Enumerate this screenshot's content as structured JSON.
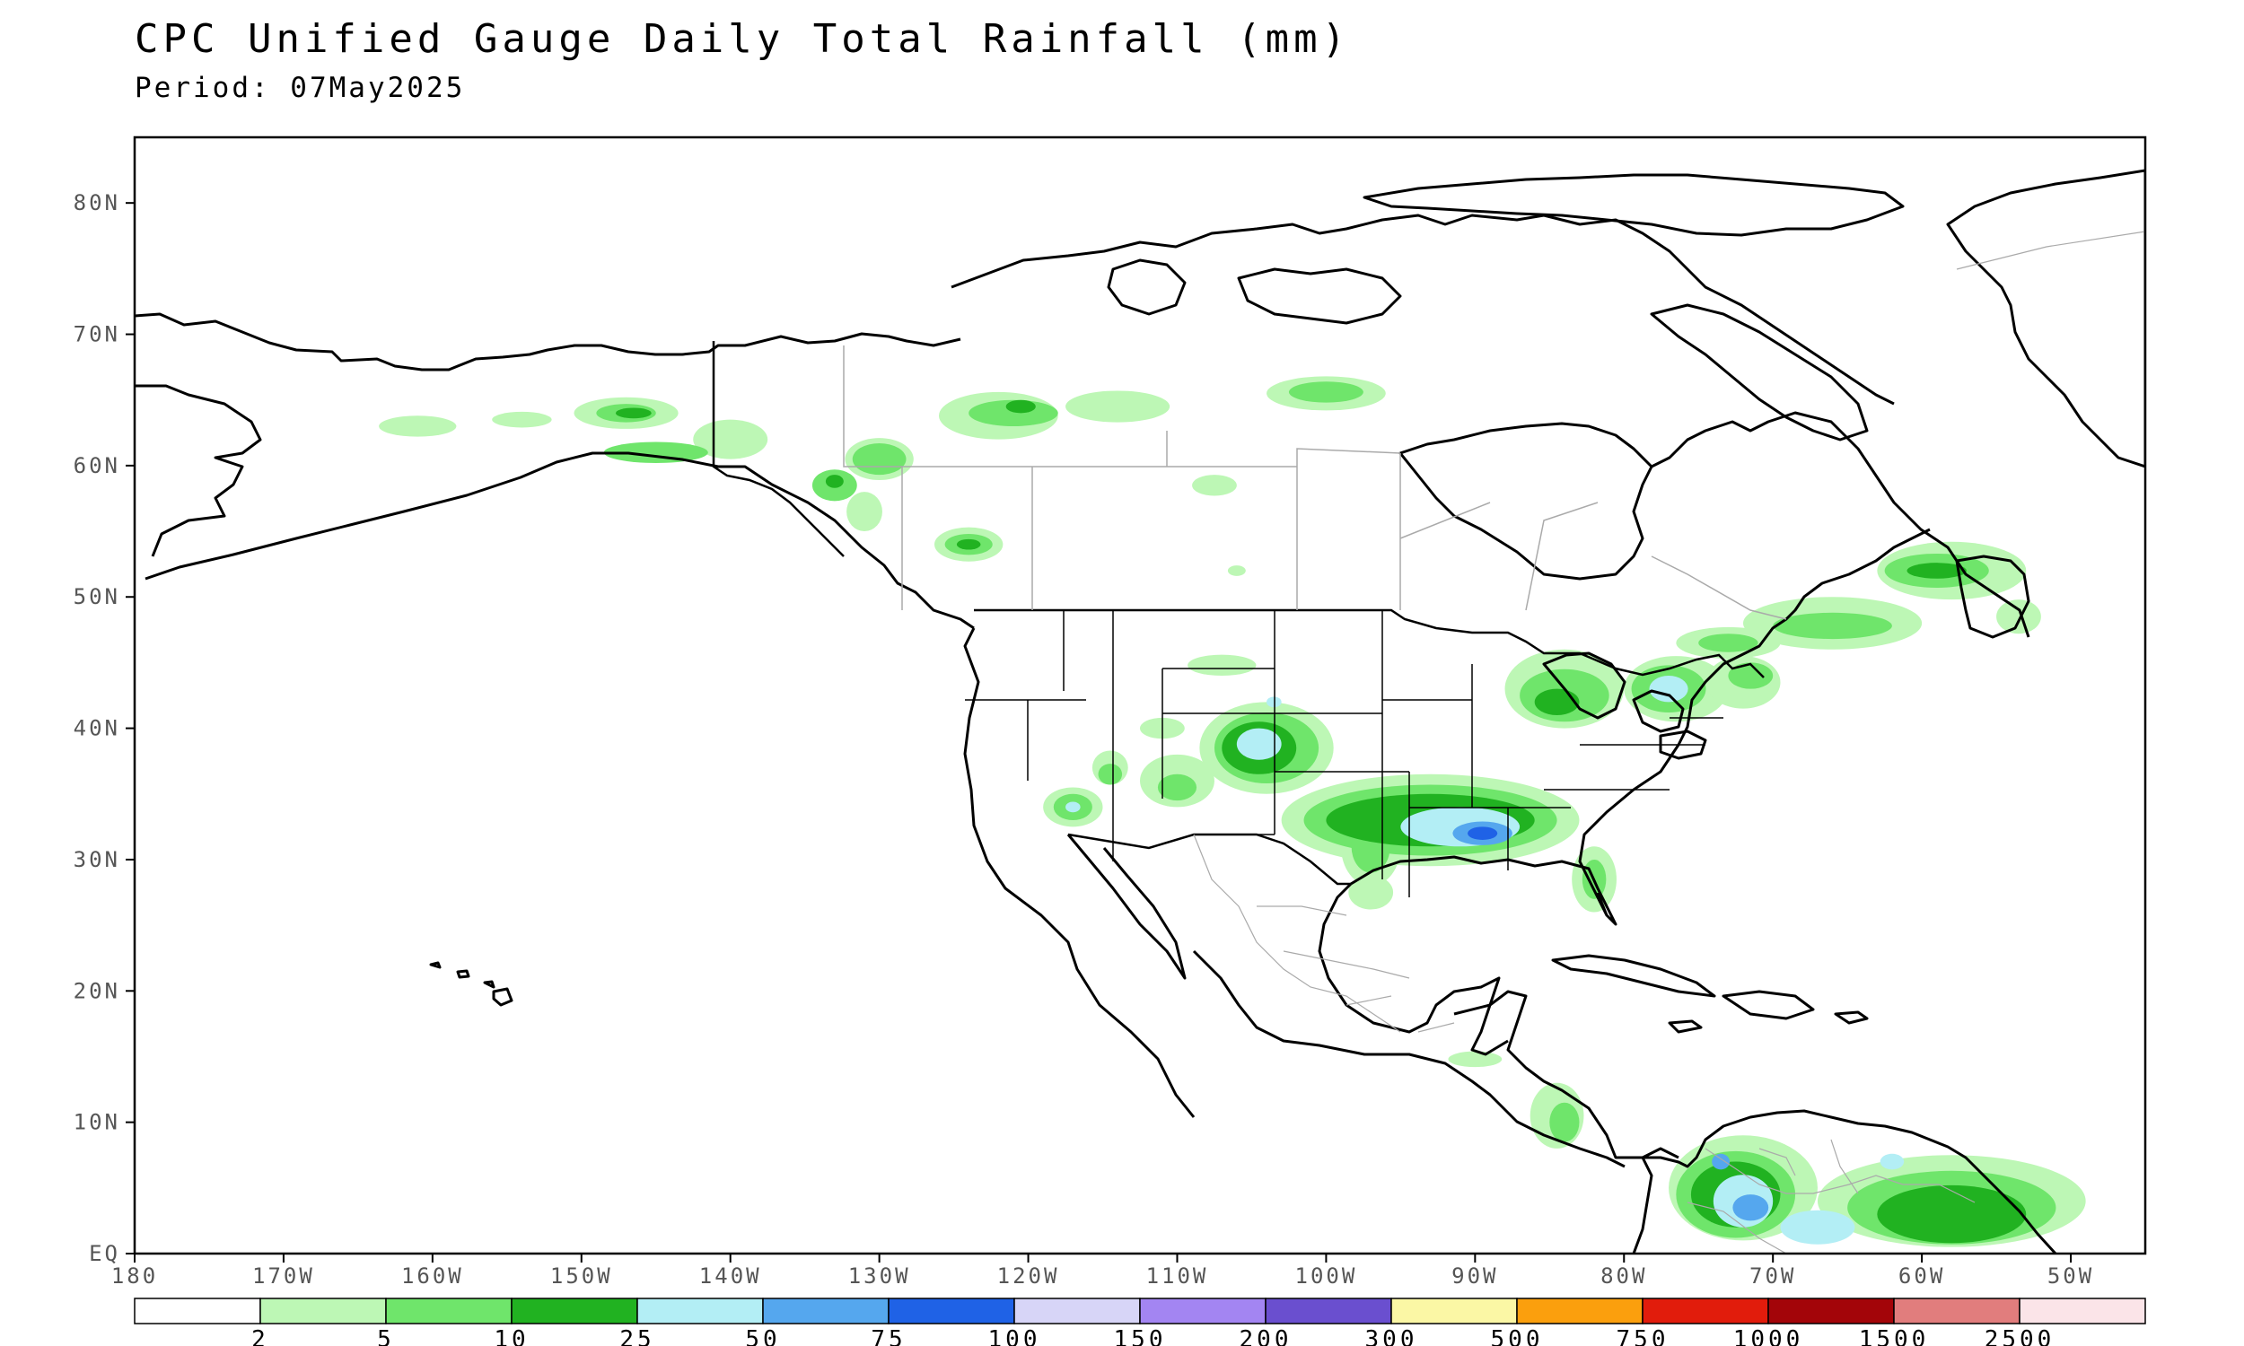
{
  "header": {
    "title": "CPC Unified Gauge Daily Total Rainfall (mm)",
    "period": "Period: 07May2025"
  },
  "map": {
    "lon_range": [
      -180,
      -45
    ],
    "lat_range": [
      0,
      85
    ],
    "lat_labels": [
      "EQ",
      "10N",
      "20N",
      "30N",
      "40N",
      "50N",
      "60N",
      "70N",
      "80N"
    ],
    "lon_labels": [
      "180",
      "170W",
      "160W",
      "150W",
      "140W",
      "130W",
      "120W",
      "110W",
      "100W",
      "90W",
      "80W",
      "70W",
      "60W",
      "50W"
    ]
  },
  "legend": {
    "colors": [
      "#ffffff",
      "#bdf7b5",
      "#6fe56b",
      "#21b221",
      "#b3eef5",
      "#55a7ee",
      "#1f62e6",
      "#d7d5f7",
      "#a385f2",
      "#6a4fcf",
      "#fbf7a5",
      "#fb9f0d",
      "#e11c0c",
      "#a30509",
      "#e17d7d",
      "#fbe4e8"
    ],
    "breaks": [
      "2",
      "5",
      "10",
      "25",
      "50",
      "75",
      "100",
      "150",
      "200",
      "300",
      "500",
      "750",
      "1000",
      "1500",
      "2500"
    ]
  },
  "rain_areas": [
    {
      "region": "Alaska",
      "level": 1,
      "lon": -161,
      "lat": 63,
      "rx": 2.6,
      "ry": 0.8
    },
    {
      "region": "Alaska",
      "level": 1,
      "lon": -154,
      "lat": 63.5,
      "rx": 2.0,
      "ry": 0.6
    },
    {
      "region": "Alaska",
      "level": 1,
      "lon": -147,
      "lat": 64,
      "rx": 3.5,
      "ry": 1.2
    },
    {
      "region": "Alaska",
      "level": 2,
      "lon": -147,
      "lat": 64,
      "rx": 2.0,
      "ry": 0.7
    },
    {
      "region": "Alaska",
      "level": 3,
      "lon": -146.5,
      "lat": 64,
      "rx": 1.2,
      "ry": 0.4
    },
    {
      "region": "Alaska",
      "level": 1,
      "lon": -140,
      "lat": 62,
      "rx": 2.5,
      "ry": 1.5
    },
    {
      "region": "Alaska",
      "level": 2,
      "lon": -145,
      "lat": 61,
      "rx": 3.5,
      "ry": 0.8
    },
    {
      "region": "Alaska",
      "level": 2,
      "lon": -133,
      "lat": 58.5,
      "rx": 1.5,
      "ry": 1.2
    },
    {
      "region": "Alaska",
      "level": 3,
      "lon": -133,
      "lat": 58.8,
      "rx": 0.6,
      "ry": 0.5
    },
    {
      "region": "Alaska",
      "level": 1,
      "lon": -131,
      "lat": 56.5,
      "rx": 1.2,
      "ry": 1.5
    },
    {
      "region": "Yukon",
      "level": 1,
      "lon": -122,
      "lat": 63.8,
      "rx": 4.0,
      "ry": 1.8
    },
    {
      "region": "Yukon",
      "level": 2,
      "lon": -121,
      "lat": 64,
      "rx": 3.0,
      "ry": 1.0
    },
    {
      "region": "Yukon",
      "level": 3,
      "lon": -120.5,
      "lat": 64.5,
      "rx": 1.0,
      "ry": 0.5
    },
    {
      "region": "NWT",
      "level": 1,
      "lon": -114,
      "lat": 64.5,
      "rx": 3.5,
      "ry": 1.2
    },
    {
      "region": "Nunavut",
      "level": 1,
      "lon": -100,
      "lat": 65.5,
      "rx": 4.0,
      "ry": 1.3
    },
    {
      "region": "Nunavut",
      "level": 2,
      "lon": -100,
      "lat": 65.6,
      "rx": 2.5,
      "ry": 0.8
    },
    {
      "region": "BC",
      "level": 2,
      "lon": -130,
      "lat": 60.5,
      "rx": 1.8,
      "ry": 1.2
    },
    {
      "region": "BC",
      "level": 1,
      "lon": -130,
      "lat": 60.5,
      "rx": 2.3,
      "ry": 1.6
    },
    {
      "region": "AB",
      "level": 1,
      "lon": -124,
      "lat": 54,
      "rx": 2.3,
      "ry": 1.3
    },
    {
      "region": "AB",
      "level": 2,
      "lon": -124,
      "lat": 54,
      "rx": 1.6,
      "ry": 0.8
    },
    {
      "region": "AB",
      "level": 3,
      "lon": -124,
      "lat": 54,
      "rx": 0.8,
      "ry": 0.4
    },
    {
      "region": "SK",
      "level": 1,
      "lon": -107.5,
      "lat": 58.5,
      "rx": 1.5,
      "ry": 0.8
    },
    {
      "region": "SK",
      "level": 1,
      "lon": -106,
      "lat": 52,
      "rx": 0.6,
      "ry": 0.4
    },
    {
      "region": "Quebec",
      "level": 1,
      "lon": -58,
      "lat": 52,
      "rx": 5.0,
      "ry": 2.2
    },
    {
      "region": "Quebec",
      "level": 2,
      "lon": -59,
      "lat": 52,
      "rx": 3.5,
      "ry": 1.3
    },
    {
      "region": "Quebec",
      "level": 3,
      "lon": -59,
      "lat": 52,
      "rx": 2.0,
      "ry": 0.6
    },
    {
      "region": "Quebec",
      "level": 1,
      "lon": -66,
      "lat": 48,
      "rx": 6.0,
      "ry": 2.0
    },
    {
      "region": "Quebec",
      "level": 2,
      "lon": -66,
      "lat": 47.8,
      "rx": 4.0,
      "ry": 1.0
    },
    {
      "region": "Quebec",
      "level": 1,
      "lon": -73,
      "lat": 46.5,
      "rx": 3.5,
      "ry": 1.2
    },
    {
      "region": "Quebec",
      "level": 2,
      "lon": -73,
      "lat": 46.5,
      "rx": 2.0,
      "ry": 0.7
    },
    {
      "region": "Atlantic",
      "level": 1,
      "lon": -53.5,
      "lat": 48.5,
      "rx": 1.5,
      "ry": 1.3
    },
    {
      "region": "Great Lakes",
      "level": 1,
      "lon": -84,
      "lat": 43,
      "rx": 4.0,
      "ry": 3.0
    },
    {
      "region": "Great Lakes",
      "level": 2,
      "lon": -84,
      "lat": 42.5,
      "rx": 3.0,
      "ry": 2.0
    },
    {
      "region": "Great Lakes",
      "level": 3,
      "lon": -84.5,
      "lat": 42.0,
      "rx": 1.5,
      "ry": 1.0
    },
    {
      "region": "Northeast",
      "level": 1,
      "lon": -76.5,
      "lat": 43,
      "rx": 3.5,
      "ry": 2.5
    },
    {
      "region": "Northeast",
      "level": 2,
      "lon": -77,
      "lat": 43,
      "rx": 2.5,
      "ry": 1.8
    },
    {
      "region": "Northeast",
      "level": 4,
      "lon": -77,
      "lat": 43,
      "rx": 1.3,
      "ry": 1.0
    },
    {
      "region": "Northeast",
      "level": 1,
      "lon": -72,
      "lat": 43.5,
      "rx": 2.5,
      "ry": 2.0
    },
    {
      "region": "Northeast",
      "level": 2,
      "lon": -71.5,
      "lat": 44,
      "rx": 1.5,
      "ry": 1.0
    },
    {
      "region": "Rockies",
      "level": 1,
      "lon": -107,
      "lat": 44.8,
      "rx": 2.3,
      "ry": 0.8
    },
    {
      "region": "Rockies",
      "level": 1,
      "lon": -111,
      "lat": 40,
      "rx": 1.5,
      "ry": 0.8
    },
    {
      "region": "Plains",
      "level": 1,
      "lon": -104,
      "lat": 38.5,
      "rx": 4.5,
      "ry": 3.5
    },
    {
      "region": "Plains",
      "level": 2,
      "lon": -104,
      "lat": 38.5,
      "rx": 3.5,
      "ry": 2.7
    },
    {
      "region": "Plains",
      "level": 3,
      "lon": -104.5,
      "lat": 38.5,
      "rx": 2.5,
      "ry": 2.0
    },
    {
      "region": "Plains",
      "level": 4,
      "lon": -104.5,
      "lat": 38.8,
      "rx": 1.5,
      "ry": 1.2
    },
    {
      "region": "Plains",
      "level": 4,
      "lon": -103.5,
      "lat": 42,
      "rx": 0.5,
      "ry": 0.4
    },
    {
      "region": "Southwest",
      "level": 1,
      "lon": -114.5,
      "lat": 37,
      "rx": 1.2,
      "ry": 1.3
    },
    {
      "region": "Southwest",
      "level": 2,
      "lon": -114.5,
      "lat": 36.5,
      "rx": 0.8,
      "ry": 0.8
    },
    {
      "region": "Southwest",
      "level": 1,
      "lon": -117,
      "lat": 34,
      "rx": 2.0,
      "ry": 1.5
    },
    {
      "region": "Southwest",
      "level": 2,
      "lon": -117,
      "lat": 34,
      "rx": 1.3,
      "ry": 1.0
    },
    {
      "region": "Southwest",
      "level": 4,
      "lon": -117,
      "lat": 34,
      "rx": 0.5,
      "ry": 0.4
    },
    {
      "region": "Southwest",
      "level": 1,
      "lon": -110,
      "lat": 36,
      "rx": 2.5,
      "ry": 2.0
    },
    {
      "region": "Southwest",
      "level": 2,
      "lon": -110,
      "lat": 35.5,
      "rx": 1.3,
      "ry": 1.0
    },
    {
      "region": "South",
      "level": 1,
      "lon": -93,
      "lat": 33,
      "rx": 10.0,
      "ry": 3.5
    },
    {
      "region": "South",
      "level": 2,
      "lon": -93,
      "lat": 33,
      "rx": 8.5,
      "ry": 2.7
    },
    {
      "region": "South",
      "level": 3,
      "lon": -93,
      "lat": 33,
      "rx": 7.0,
      "ry": 2.0
    },
    {
      "region": "South",
      "level": 4,
      "lon": -91,
      "lat": 32.5,
      "rx": 4.0,
      "ry": 1.5
    },
    {
      "region": "South",
      "level": 5,
      "lon": -89.5,
      "lat": 32,
      "rx": 2.0,
      "ry": 0.9
    },
    {
      "region": "South",
      "level": 6,
      "lon": -89.5,
      "lat": 32,
      "rx": 1.0,
      "ry": 0.5
    },
    {
      "region": "South",
      "level": 1,
      "lon": -97,
      "lat": 31,
      "rx": 2.0,
      "ry": 3.0
    },
    {
      "region": "South",
      "level": 2,
      "lon": -97,
      "lat": 31,
      "rx": 1.3,
      "ry": 2.0
    },
    {
      "region": "Gulf Coast",
      "level": 1,
      "lon": -97,
      "lat": 27.5,
      "rx": 1.5,
      "ry": 1.3
    },
    {
      "region": "Florida",
      "level": 1,
      "lon": -82,
      "lat": 28.5,
      "rx": 1.5,
      "ry": 2.5
    },
    {
      "region": "Florida",
      "level": 2,
      "lon": -82,
      "lat": 28.5,
      "rx": 0.8,
      "ry": 1.5
    },
    {
      "region": "Central America",
      "level": 1,
      "lon": -90,
      "lat": 14.8,
      "rx": 1.8,
      "ry": 0.6
    },
    {
      "region": "Central America",
      "level": 1,
      "lon": -84.5,
      "lat": 10.5,
      "rx": 1.8,
      "ry": 2.5
    },
    {
      "region": "Central America",
      "level": 2,
      "lon": -84,
      "lat": 10,
      "rx": 1.0,
      "ry": 1.5
    },
    {
      "region": "South America",
      "level": 1,
      "lon": -72,
      "lat": 5,
      "rx": 5.0,
      "ry": 4.0
    },
    {
      "region": "South America",
      "level": 2,
      "lon": -72.5,
      "lat": 4.5,
      "rx": 4.0,
      "ry": 3.3
    },
    {
      "region": "South America",
      "level": 3,
      "lon": -72.5,
      "lat": 4.5,
      "rx": 3.0,
      "ry": 2.5
    },
    {
      "region": "South America",
      "level": 4,
      "lon": -72,
      "lat": 4,
      "rx": 2.0,
      "ry": 2.0
    },
    {
      "region": "South America",
      "level": 5,
      "lon": -71.5,
      "lat": 3.5,
      "rx": 1.2,
      "ry": 1.0
    },
    {
      "region": "South America",
      "level": 5,
      "lon": -73.5,
      "lat": 7,
      "rx": 0.6,
      "ry": 0.6
    },
    {
      "region": "South America",
      "level": 4,
      "lon": -67,
      "lat": 2,
      "rx": 2.5,
      "ry": 1.3
    },
    {
      "region": "South America",
      "level": 1,
      "lon": -58,
      "lat": 4,
      "rx": 9.0,
      "ry": 3.5
    },
    {
      "region": "South America",
      "level": 2,
      "lon": -58,
      "lat": 3.5,
      "rx": 7.0,
      "ry": 2.8
    },
    {
      "region": "South America",
      "level": 3,
      "lon": -58,
      "lat": 3,
      "rx": 5.0,
      "ry": 2.2
    },
    {
      "region": "South America",
      "level": 4,
      "lon": -62,
      "lat": 7,
      "rx": 0.8,
      "ry": 0.6
    }
  ]
}
